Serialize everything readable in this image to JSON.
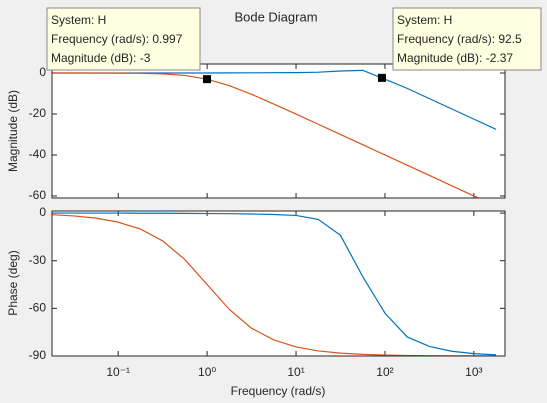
{
  "chart_data": [
    {
      "type": "line",
      "title": "Bode Diagram",
      "y_label": "Magnitude (dB)",
      "log_x": true,
      "x": [
        0.0178,
        0.0316,
        0.0562,
        0.1,
        0.178,
        0.316,
        0.562,
        1,
        1.78,
        3.16,
        5.62,
        10,
        17.8,
        31.6,
        56.2,
        100,
        178,
        316,
        562,
        1000,
        1778
      ],
      "xlim": [
        0.018,
        2240
      ],
      "xticks": [
        0.1,
        1,
        10,
        100,
        1000
      ],
      "ylim": [
        -61,
        4.4
      ],
      "yticks": [
        -60,
        -40,
        -20,
        0
      ],
      "series": [
        {
          "color": "#0072bd",
          "values": [
            0,
            0,
            0,
            0,
            0,
            0,
            0,
            0,
            0.05,
            0.1,
            0.15,
            0.2,
            0.4,
            1.0,
            1.3,
            -3.0,
            -7.5,
            -12.5,
            -17.5,
            -22.5,
            -27.5
          ]
        },
        {
          "color": "#d95319",
          "values": [
            -0.0014,
            -0.004,
            -0.014,
            -0.043,
            -0.136,
            -0.414,
            -1.19,
            -3.01,
            -6.2,
            -10.41,
            -15.13,
            -20.04,
            -25.0,
            -30.0,
            -35.0,
            -40.0,
            -45.0,
            -50.0,
            -55.0,
            -60.0,
            -65.0
          ]
        }
      ],
      "datatips": [
        {
          "x": 0.997,
          "y": -3,
          "lines": [
            "System: H",
            "Frequency (rad/s): 0.997",
            "Magnitude (dB): -3"
          ]
        },
        {
          "x": 92.5,
          "y": -2.37,
          "lines": [
            "System: H",
            "Frequency (rad/s): 92.5",
            "Magnitude (dB): -2.37"
          ]
        }
      ]
    },
    {
      "type": "line",
      "x_label": "Frequency  (rad/s)",
      "y_label": "Phase (deg)",
      "log_x": true,
      "x": [
        0.0178,
        0.0316,
        0.0562,
        0.1,
        0.178,
        0.316,
        0.562,
        1,
        1.78,
        3.16,
        5.62,
        10,
        17.8,
        31.6,
        56.2,
        100,
        178,
        316,
        562,
        1000,
        1778
      ],
      "xlim": [
        0.018,
        2240
      ],
      "xticks": [
        {
          "value": 0.1,
          "label": "10⁻¹"
        },
        {
          "value": 1,
          "label": "10⁰"
        },
        {
          "value": 10,
          "label": "10¹"
        },
        {
          "value": 100,
          "label": "10²"
        },
        {
          "value": 1000,
          "label": "10³"
        }
      ],
      "ylim": [
        -90,
        1.3
      ],
      "yticks": [
        -90,
        -60,
        -30,
        0
      ],
      "series": [
        {
          "color": "#0072bd",
          "values": [
            0,
            0,
            0,
            0,
            -0.1,
            -0.1,
            -0.2,
            -0.3,
            -0.4,
            -0.6,
            -0.9,
            -1.5,
            -4,
            -14,
            -40,
            -63,
            -78,
            -84,
            -87,
            -88.5,
            -89.3
          ]
        },
        {
          "color": "#d95319",
          "values": [
            -1.0,
            -1.8,
            -3.2,
            -5.7,
            -10.1,
            -17.5,
            -29.3,
            -45,
            -60.7,
            -72.5,
            -79.9,
            -84.3,
            -86.8,
            -88.2,
            -89.0,
            -89.4,
            -89.7,
            -89.8,
            -89.9,
            -89.9,
            -90.0
          ]
        }
      ]
    }
  ]
}
